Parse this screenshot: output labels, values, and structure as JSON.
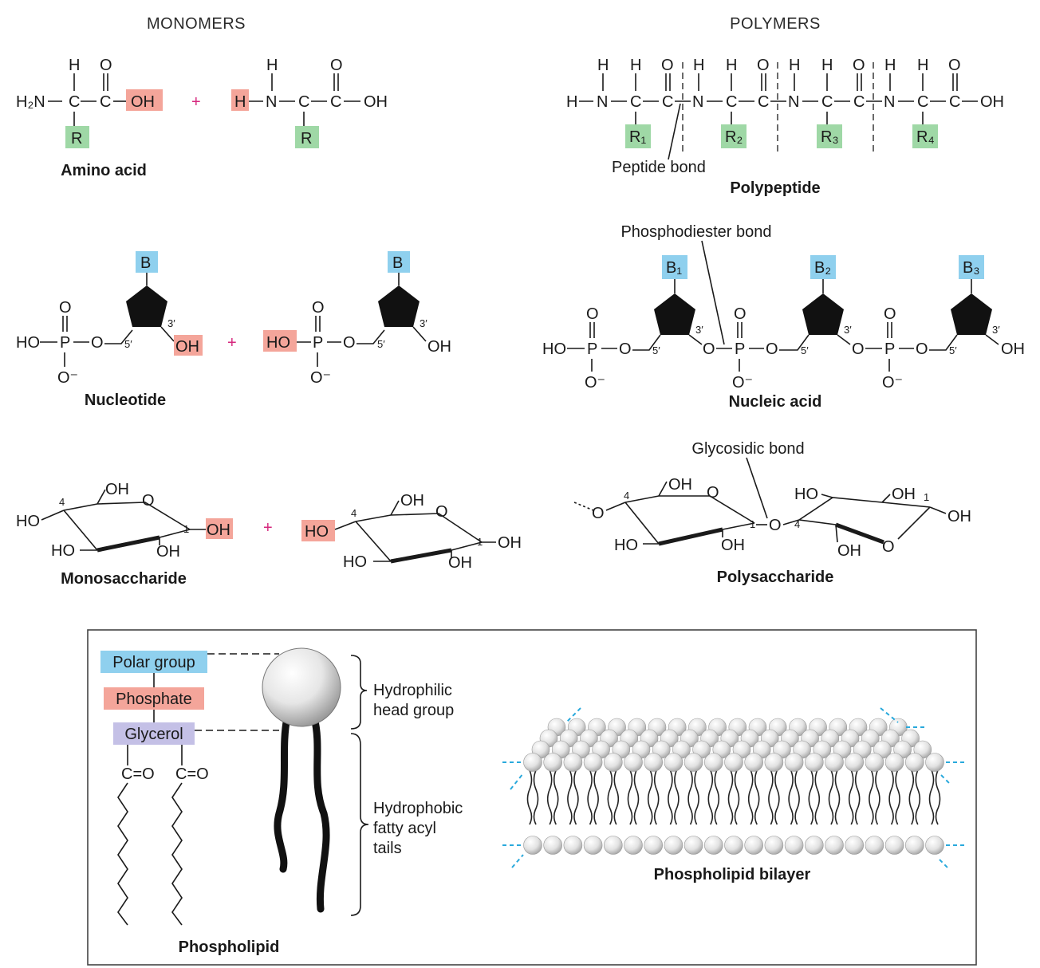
{
  "headers": {
    "monomers": "MONOMERS",
    "polymers": "POLYMERS"
  },
  "captions": {
    "amino_acid": "Amino acid",
    "polypeptide": "Polypeptide",
    "nucleotide": "Nucleotide",
    "nucleic_acid": "Nucleic acid",
    "monosaccharide": "Monosaccharide",
    "polysaccharide": "Polysaccharide",
    "phospholipid": "Phospholipid",
    "phospholipid_bilayer": "Phospholipid bilayer"
  },
  "bonds": {
    "peptide": "Peptide bond",
    "phosphodiester": "Phosphodiester bond",
    "glycosidic": "Glycosidic bond"
  },
  "atoms": {
    "H": "H",
    "O": "O",
    "C": "C",
    "N": "N",
    "P": "P",
    "OH": "OH",
    "HO": "HO",
    "H2N": "H₂N",
    "R": "R",
    "B": "B",
    "O_minus": "O⁻",
    "plus": "+",
    "R1": "R₁",
    "R2": "R₂",
    "R3": "R₃",
    "R4": "R₄",
    "B1": "B₁",
    "B2": "B₂",
    "B3": "B₃",
    "prime3": "3′",
    "prime5": "5′",
    "n1": "1",
    "n4": "4",
    "co": "C=O"
  },
  "lipid": {
    "polar_group": "Polar group",
    "phosphate": "Phosphate",
    "glycerol": "Glycerol",
    "hydrophilic_l1": "Hydrophilic",
    "hydrophilic_l2": "head group",
    "hydrophobic_l1": "Hydrophobic",
    "hydrophobic_l2": "fatty acyl",
    "hydrophobic_l3": "tails"
  },
  "colors": {
    "green_R": "#9fd8a6",
    "red_OH": "#f4a59a",
    "blue_B": "#8fd0ee",
    "purple_glycerol": "#c4c0e6",
    "plus": "#d6287e",
    "bilayer_edge": "#29a9dc"
  }
}
